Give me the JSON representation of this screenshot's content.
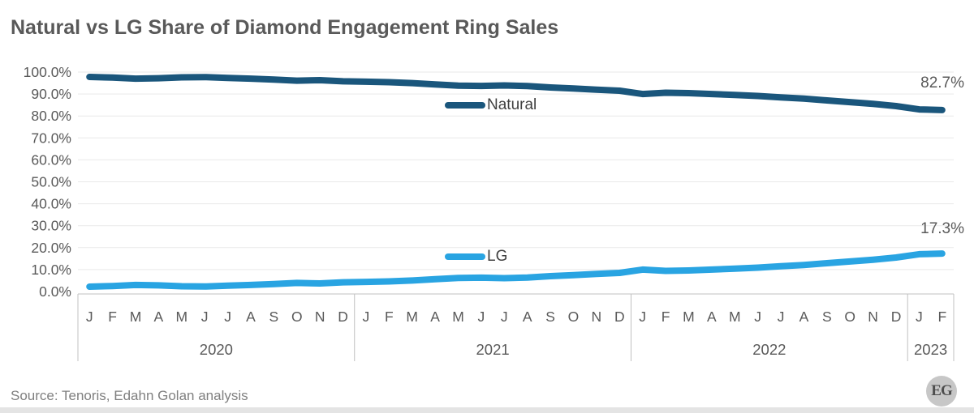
{
  "title": "Natural vs LG Share of Diamond Engagement Ring Sales",
  "source": "Source: Tenoris, Edahn Golan analysis",
  "logo_text": "EG",
  "colors": {
    "natural_line": "#1a567c",
    "lg_line": "#29a4e2",
    "title_text": "#595959",
    "axis_text": "#595959",
    "gridline": "#e9e9e9",
    "axis_line": "#c0c0c0",
    "source_text": "#808080"
  },
  "chart_data": {
    "type": "line",
    "title": "Natural vs LG Share of Diamond Engagement Ring Sales",
    "ylim": [
      0,
      100
    ],
    "y_tick_step": 10,
    "y_tick_labels": [
      "0.0%",
      "10.0%",
      "20.0%",
      "30.0%",
      "40.0%",
      "50.0%",
      "60.0%",
      "70.0%",
      "80.0%",
      "90.0%",
      "100.0%"
    ],
    "grid": true,
    "legend_position": "inline-left-of-line",
    "x_axis": {
      "years": [
        {
          "year": "2020",
          "months": [
            "J",
            "F",
            "M",
            "A",
            "M",
            "J",
            "J",
            "A",
            "S",
            "O",
            "N",
            "D"
          ]
        },
        {
          "year": "2021",
          "months": [
            "J",
            "F",
            "M",
            "A",
            "M",
            "J",
            "J",
            "A",
            "S",
            "O",
            "N",
            "D"
          ]
        },
        {
          "year": "2022",
          "months": [
            "J",
            "F",
            "M",
            "A",
            "M",
            "J",
            "J",
            "A",
            "S",
            "O",
            "N",
            "D"
          ]
        },
        {
          "year": "2023",
          "months": [
            "J",
            "F"
          ]
        }
      ]
    },
    "series": [
      {
        "name": "Natural",
        "color": "#1a567c",
        "end_label": "82.7%",
        "values": [
          97.8,
          97.5,
          97.0,
          97.2,
          97.6,
          97.7,
          97.3,
          97.0,
          96.6,
          96.1,
          96.3,
          95.8,
          95.6,
          95.4,
          95.0,
          94.4,
          93.8,
          93.7,
          93.9,
          93.6,
          93.0,
          92.5,
          92.0,
          91.5,
          90.0,
          90.6,
          90.4,
          90.0,
          89.6,
          89.1,
          88.5,
          87.9,
          87.1,
          86.3,
          85.5,
          84.5,
          83.0,
          82.7
        ]
      },
      {
        "name": "LG",
        "color": "#29a4e2",
        "end_label": "17.3%",
        "values": [
          2.2,
          2.5,
          3.0,
          2.8,
          2.4,
          2.3,
          2.7,
          3.0,
          3.4,
          3.9,
          3.7,
          4.2,
          4.4,
          4.6,
          5.0,
          5.6,
          6.2,
          6.3,
          6.1,
          6.4,
          7.0,
          7.5,
          8.0,
          8.5,
          10.0,
          9.4,
          9.6,
          10.0,
          10.4,
          10.9,
          11.5,
          12.1,
          12.9,
          13.7,
          14.5,
          15.5,
          17.0,
          17.3
        ]
      }
    ]
  }
}
